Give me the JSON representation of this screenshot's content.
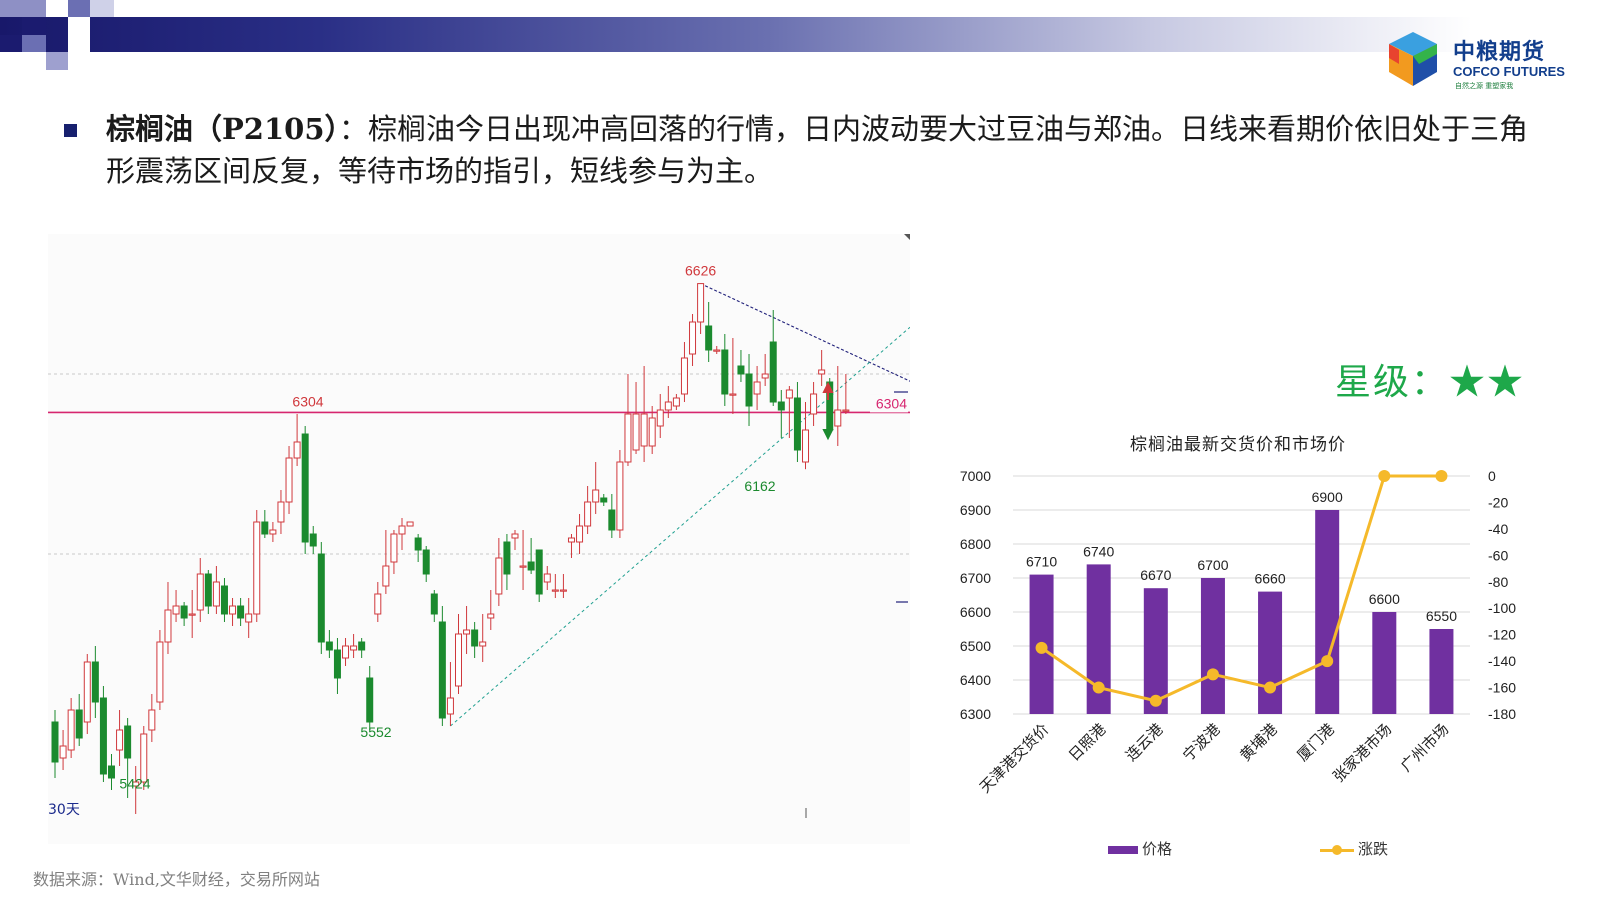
{
  "logo": {
    "cn": "中粮期货",
    "en": "COFCO FUTURES",
    "slogan": "自然之源  重塑家我"
  },
  "headline": {
    "title": "棕榈油（P2105）",
    "text": "：棕榈油今日出现冲高回落的行情，日内波动要大过豆油与郑油。日线来看期价依旧处于三角形震荡区间反复，等待市场的指引，短线参与为主。"
  },
  "rating": "星级：★★",
  "source": "数据来源：Wind,文华财经，交易所网站",
  "colors": {
    "header_dark": "#18186a",
    "up": "#d0383c",
    "down": "#1b8a2e",
    "resistance_line": "#d6266f",
    "bar": "#7030a0",
    "line": "#f5b92a",
    "rating": "#1ea84a"
  },
  "chart_data": [
    {
      "type": "candlestick",
      "title": "",
      "period_label": "30天",
      "ylim": [
        5300,
        6700
      ],
      "annotations": [
        {
          "label": "6626",
          "value": 6626,
          "kind": "high"
        },
        {
          "label": "6304",
          "value": 6304,
          "kind": "level"
        },
        {
          "label": "6162",
          "value": 6162,
          "kind": "low"
        },
        {
          "label": "5552",
          "value": 5552,
          "kind": "low"
        },
        {
          "label": "5424",
          "value": 5424,
          "kind": "low"
        }
      ],
      "right_label": "6304",
      "candles": [
        [
          5530,
          5430,
          5390,
          5560
        ],
        [
          5440,
          5470,
          5410,
          5510
        ],
        [
          5460,
          5560,
          5440,
          5590
        ],
        [
          5560,
          5490,
          5470,
          5600
        ],
        [
          5530,
          5680,
          5500,
          5700
        ],
        [
          5680,
          5580,
          5540,
          5720
        ],
        [
          5590,
          5400,
          5380,
          5620
        ],
        [
          5420,
          5390,
          5360,
          5450
        ],
        [
          5460,
          5510,
          5420,
          5560
        ],
        [
          5520,
          5440,
          5340,
          5540
        ],
        [
          5370,
          5380,
          5300,
          5420
        ],
        [
          5380,
          5500,
          5360,
          5520
        ],
        [
          5510,
          5560,
          5480,
          5600
        ],
        [
          5580,
          5730,
          5560,
          5760
        ],
        [
          5730,
          5810,
          5700,
          5880
        ],
        [
          5800,
          5820,
          5780,
          5860
        ],
        [
          5820,
          5790,
          5770,
          5830
        ],
        [
          5800,
          5800,
          5740,
          5860
        ],
        [
          5810,
          5900,
          5780,
          5940
        ],
        [
          5900,
          5820,
          5800,
          5910
        ],
        [
          5820,
          5880,
          5800,
          5920
        ],
        [
          5870,
          5800,
          5780,
          5890
        ],
        [
          5800,
          5820,
          5770,
          5840
        ],
        [
          5820,
          5790,
          5770,
          5840
        ],
        [
          5780,
          5800,
          5740,
          5840
        ],
        [
          5800,
          6030,
          5780,
          6060
        ],
        [
          6030,
          6000,
          5990,
          6060
        ],
        [
          6000,
          6010,
          5980,
          6030
        ],
        [
          6030,
          6080,
          6000,
          6110
        ],
        [
          6080,
          6190,
          6050,
          6220
        ],
        [
          6190,
          6230,
          6170,
          6300
        ],
        [
          6250,
          5980,
          5950,
          6270
        ],
        [
          6000,
          5970,
          5950,
          6020
        ],
        [
          5950,
          5730,
          5700,
          5980
        ],
        [
          5730,
          5710,
          5690,
          5760
        ],
        [
          5710,
          5640,
          5600,
          5740
        ],
        [
          5690,
          5720,
          5670,
          5740
        ],
        [
          5710,
          5720,
          5690,
          5750
        ],
        [
          5730,
          5710,
          5690,
          5740
        ],
        [
          5640,
          5530,
          5510,
          5670
        ],
        [
          5800,
          5850,
          5780,
          5880
        ],
        [
          5870,
          5920,
          5850,
          6010
        ],
        [
          5930,
          6000,
          5900,
          6010
        ],
        [
          6000,
          6020,
          5960,
          6040
        ],
        [
          6020,
          6030,
          6020,
          6030
        ],
        [
          5990,
          5960,
          5930,
          6000
        ],
        [
          5960,
          5900,
          5880,
          5970
        ],
        [
          5850,
          5800,
          5780,
          5860
        ],
        [
          5780,
          5540,
          5520,
          5820
        ],
        [
          5550,
          5590,
          5520,
          5680
        ],
        [
          5620,
          5750,
          5600,
          5800
        ],
        [
          5750,
          5760,
          5700,
          5820
        ],
        [
          5760,
          5720,
          5690,
          5780
        ],
        [
          5720,
          5730,
          5680,
          5800
        ],
        [
          5790,
          5800,
          5760,
          5860
        ],
        [
          5850,
          5940,
          5820,
          5990
        ],
        [
          5980,
          5900,
          5860,
          6000
        ],
        [
          5990,
          6000,
          5960,
          6010
        ],
        [
          5920,
          5920,
          5860,
          6010
        ],
        [
          5930,
          5910,
          5900,
          5990
        ],
        [
          5960,
          5850,
          5830,
          5960
        ],
        [
          5880,
          5900,
          5860,
          5920
        ],
        [
          5860,
          5860,
          5840,
          5900
        ],
        [
          5860,
          5860,
          5840,
          5900
        ],
        [
          5980,
          5990,
          5940,
          6000
        ],
        [
          5980,
          6020,
          5950,
          6050
        ],
        [
          6020,
          6080,
          6000,
          6120
        ],
        [
          6080,
          6110,
          6050,
          6180
        ],
        [
          6090,
          6080,
          6070,
          6100
        ],
        [
          6060,
          6010,
          5990,
          6100
        ],
        [
          6010,
          6180,
          5990,
          6210
        ],
        [
          6180,
          6300,
          6170,
          6400
        ],
        [
          6210,
          6300,
          6200,
          6380
        ],
        [
          6220,
          6300,
          6180,
          6420
        ],
        [
          6220,
          6290,
          6200,
          6320
        ],
        [
          6270,
          6310,
          6240,
          6350
        ],
        [
          6310,
          6330,
          6290,
          6370
        ],
        [
          6320,
          6340,
          6310,
          6350
        ],
        [
          6350,
          6440,
          6330,
          6480
        ],
        [
          6450,
          6530,
          6420,
          6550
        ],
        [
          6530,
          6626,
          6500,
          6626
        ],
        [
          6520,
          6460,
          6430,
          6580
        ],
        [
          6460,
          6460,
          6450,
          6470
        ],
        [
          6460,
          6350,
          6320,
          6500
        ],
        [
          6350,
          6350,
          6300,
          6490
        ],
        [
          6420,
          6400,
          6380,
          6460
        ],
        [
          6400,
          6320,
          6270,
          6450
        ],
        [
          6350,
          6380,
          6310,
          6420
        ],
        [
          6390,
          6400,
          6370,
          6450
        ],
        [
          6480,
          6330,
          6320,
          6560
        ],
        [
          6330,
          6310,
          6240,
          6360
        ],
        [
          6340,
          6360,
          6240,
          6370
        ],
        [
          6340,
          6210,
          6180,
          6380
        ],
        [
          6180,
          6260,
          6162,
          6330
        ],
        [
          6300,
          6350,
          6270,
          6380
        ],
        [
          6400,
          6410,
          6370,
          6460
        ],
        [
          6380,
          6260,
          6260,
          6390
        ],
        [
          6270,
          6310,
          6220,
          6420
        ],
        [
          6310,
          6310,
          6300,
          6400
        ]
      ]
    },
    {
      "type": "bar+line",
      "title": "棕榈油最新交货价和市场价",
      "categories": [
        "天津港交货价",
        "日照港",
        "连云港",
        "宁波港",
        "黄埔港",
        "厦门港",
        "张家港市场",
        "广州市场"
      ],
      "series": [
        {
          "name": "价格",
          "type": "bar",
          "axis": "left",
          "values": [
            6710,
            6740,
            6670,
            6700,
            6660,
            6900,
            6600,
            6550
          ]
        },
        {
          "name": "涨跌",
          "type": "line",
          "axis": "right",
          "values": [
            -130,
            -160,
            -170,
            -150,
            -160,
            -140,
            0,
            0
          ]
        }
      ],
      "ylim_left": [
        6300,
        7000
      ],
      "yticks_left": [
        6300,
        6400,
        6500,
        6600,
        6700,
        6800,
        6900,
        7000
      ],
      "ylim_right": [
        -180,
        0
      ],
      "yticks_right": [
        0,
        -20,
        -40,
        -60,
        -80,
        -100,
        -120,
        -140,
        -160,
        -180
      ],
      "legend_position": "bottom"
    }
  ]
}
